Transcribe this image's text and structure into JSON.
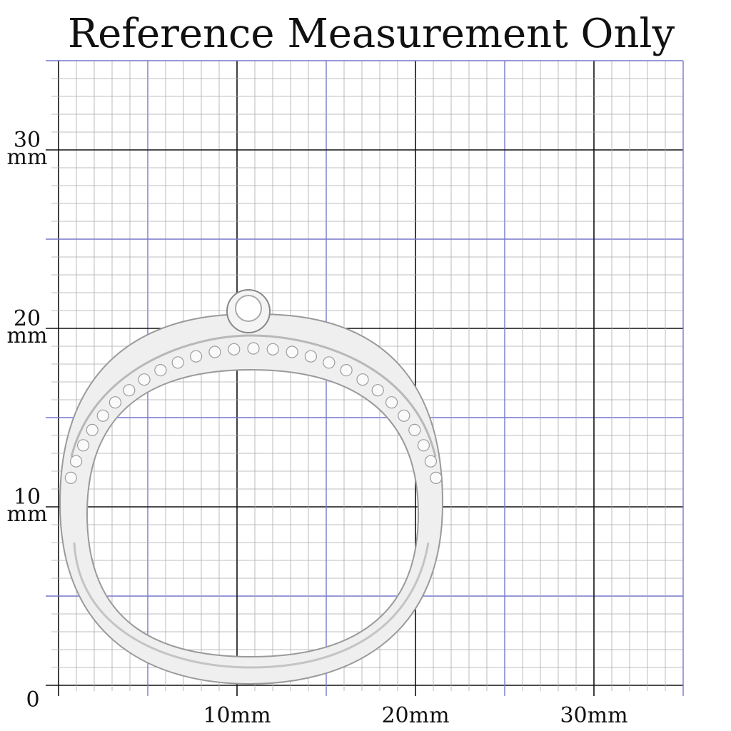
{
  "header": {
    "title": "Reference Measurement Only"
  },
  "y_axis": {
    "labels": [
      {
        "number": "30",
        "unit": "mm"
      },
      {
        "number": "20",
        "unit": "mm"
      },
      {
        "number": "10",
        "unit": "mm"
      }
    ],
    "origin": "0"
  },
  "x_axis": {
    "labels": [
      "10mm",
      "20mm",
      "30mm"
    ]
  }
}
